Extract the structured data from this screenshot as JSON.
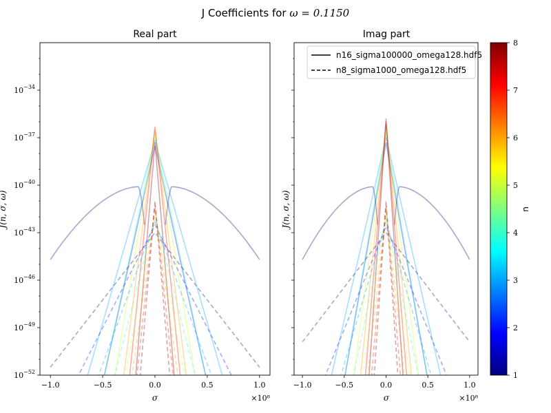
{
  "figure": {
    "suptitle_prefix": "J Coefficients for ",
    "suptitle_math": "ω = 0.1150"
  },
  "chart_data": [
    {
      "type": "line",
      "title": "Real part",
      "xlabel": "σ",
      "ylabel": "J(n, σ, ω)",
      "x_offset_text": "×10⁸",
      "x_range": [
        -1.1,
        1.1
      ],
      "x_scale_multiplier": 100000000.0,
      "y_scale": "log",
      "y_range_log10": [
        -52,
        -31
      ],
      "xticks": [
        -1.0,
        -0.5,
        0.0,
        0.5,
        1.0
      ],
      "xtick_labels": [
        "−1.0",
        "−0.5",
        "0.0",
        "0.5",
        "1.0"
      ],
      "yticks_log10": [
        -34,
        -37,
        -40,
        -43,
        -46,
        -49,
        -52
      ],
      "grid": false,
      "series_groups": [
        {
          "name": "n16_sigma100000_omega128.hdf5",
          "linestyle": "solid",
          "alpha": 0.35,
          "curves": [
            {
              "n": 1,
              "peaks": [
                {
                  "x": -0.16,
                  "y": -40.1
                },
                {
                  "x": 0.16,
                  "y": -40.1
                }
              ],
              "dip_to": -42.5,
              "ends": [
                {
                  "x": -1.0,
                  "y": -44.7
                },
                {
                  "x": 1.0,
                  "y": -44.7
                }
              ]
            },
            {
              "n": 2,
              "peak_y": -37.5,
              "slope_per_unit": 30.0
            },
            {
              "n": 3,
              "peak_y": -37.2,
              "slope_per_unit": 23.0
            },
            {
              "n": 4,
              "peak_y": -37.0,
              "slope_per_unit": 31.0
            },
            {
              "n": 5,
              "peak_y": -36.7,
              "slope_per_unit": 40.0
            },
            {
              "n": 6,
              "peak_y": -36.5,
              "slope_per_unit": 52.0
            },
            {
              "n": 7,
              "peak_y": -36.3,
              "slope_per_unit": 65.0
            },
            {
              "n": 8,
              "peak_y": -37.3,
              "slope_per_unit": 80.0
            }
          ]
        },
        {
          "name": "n8_sigma1000_omega128.hdf5",
          "linestyle": "dashed",
          "alpha": 0.35,
          "curves": [
            {
              "n": 1,
              "peak_y": -43.0,
              "ends_y": -51.5
            },
            {
              "n": 2,
              "peak_y": -42.5,
              "slope_per_unit": 13.0
            },
            {
              "n": 3,
              "peak_y": -42.3,
              "slope_per_unit": 18.0
            },
            {
              "n": 4,
              "peak_y": -42.0,
              "slope_per_unit": 26.0
            },
            {
              "n": 5,
              "peak_y": -41.8,
              "slope_per_unit": 36.0
            },
            {
              "n": 6,
              "peak_y": -41.5,
              "slope_per_unit": 48.0
            },
            {
              "n": 7,
              "peak_y": -41.3,
              "slope_per_unit": 62.0
            },
            {
              "n": 8,
              "peak_y": -41.0,
              "slope_per_unit": 78.0
            }
          ]
        }
      ]
    },
    {
      "type": "line",
      "title": "Imag part",
      "xlabel": "σ",
      "ylabel": "J(n, σ, ω)",
      "x_offset_text": "×10⁸",
      "x_range": [
        -1.1,
        1.1
      ],
      "x_scale_multiplier": 100000000.0,
      "y_scale": "log",
      "y_range_log10": [
        -52,
        -31
      ],
      "xticks": [
        -1.0,
        -0.5,
        0.0,
        0.5,
        1.0
      ],
      "xtick_labels": [
        "−1.0",
        "−0.5",
        "0.0",
        "0.5",
        "1.0"
      ],
      "yticks_log10": [
        -34,
        -37,
        -40,
        -43,
        -46,
        -49,
        -52
      ],
      "show_ytick_labels": false,
      "grid": false,
      "legend": {
        "placement": "upper right",
        "entries": [
          {
            "label": "n16_sigma100000_omega128.hdf5",
            "linestyle": "solid"
          },
          {
            "label": "n8_sigma1000_omega128.hdf5",
            "linestyle": "dashed"
          }
        ]
      },
      "series_groups": [
        {
          "name": "n16_sigma100000_omega128.hdf5",
          "linestyle": "solid",
          "alpha": 0.35,
          "curves": [
            {
              "n": 1,
              "peaks": [
                {
                  "x": -0.16,
                  "y": -40.1
                },
                {
                  "x": 0.16,
                  "y": -40.1
                }
              ],
              "dip_to": -42.5,
              "ends": [
                {
                  "x": -1.0,
                  "y": -44.7
                },
                {
                  "x": 1.0,
                  "y": -44.7
                }
              ]
            },
            {
              "n": 2,
              "peak_y": -37.3,
              "slope_per_unit": 30.0
            },
            {
              "n": 3,
              "peak_y": -37.0,
              "slope_per_unit": 23.0
            },
            {
              "n": 4,
              "peak_y": -36.8,
              "slope_per_unit": 31.0
            },
            {
              "n": 5,
              "peak_y": -36.5,
              "slope_per_unit": 40.0
            },
            {
              "n": 6,
              "peak_y": -36.2,
              "slope_per_unit": 52.0
            },
            {
              "n": 7,
              "peak_y": -36.0,
              "slope_per_unit": 65.0
            },
            {
              "n": 8,
              "peak_y": -35.8,
              "slope_per_unit": 80.0
            }
          ]
        },
        {
          "name": "n8_sigma1000_omega128.hdf5",
          "linestyle": "dashed",
          "alpha": 0.35,
          "curves": [
            {
              "n": 1,
              "peak_y": -43.0,
              "ends_y": -49.9
            },
            {
              "n": 2,
              "peak_y": -42.6,
              "slope_per_unit": 13.0
            },
            {
              "n": 3,
              "peak_y": -42.3,
              "slope_per_unit": 18.0
            },
            {
              "n": 4,
              "peak_y": -42.0,
              "slope_per_unit": 26.0
            },
            {
              "n": 5,
              "peak_y": -41.8,
              "slope_per_unit": 36.0
            },
            {
              "n": 6,
              "peak_y": -41.5,
              "slope_per_unit": 48.0
            },
            {
              "n": 7,
              "peak_y": -41.3,
              "slope_per_unit": 62.0
            },
            {
              "n": 8,
              "peak_y": -41.0,
              "slope_per_unit": 78.0
            }
          ]
        }
      ]
    }
  ],
  "colorbar": {
    "label": "n",
    "range": [
      1,
      8
    ],
    "ticks": [
      1,
      2,
      3,
      4,
      5,
      6,
      7,
      8
    ],
    "colormap": "jet",
    "colors": [
      "#00007f",
      "#0000ff",
      "#007fff",
      "#00ffff",
      "#7fff7f",
      "#ffff00",
      "#ff7f00",
      "#ff0000",
      "#7f0000"
    ]
  }
}
